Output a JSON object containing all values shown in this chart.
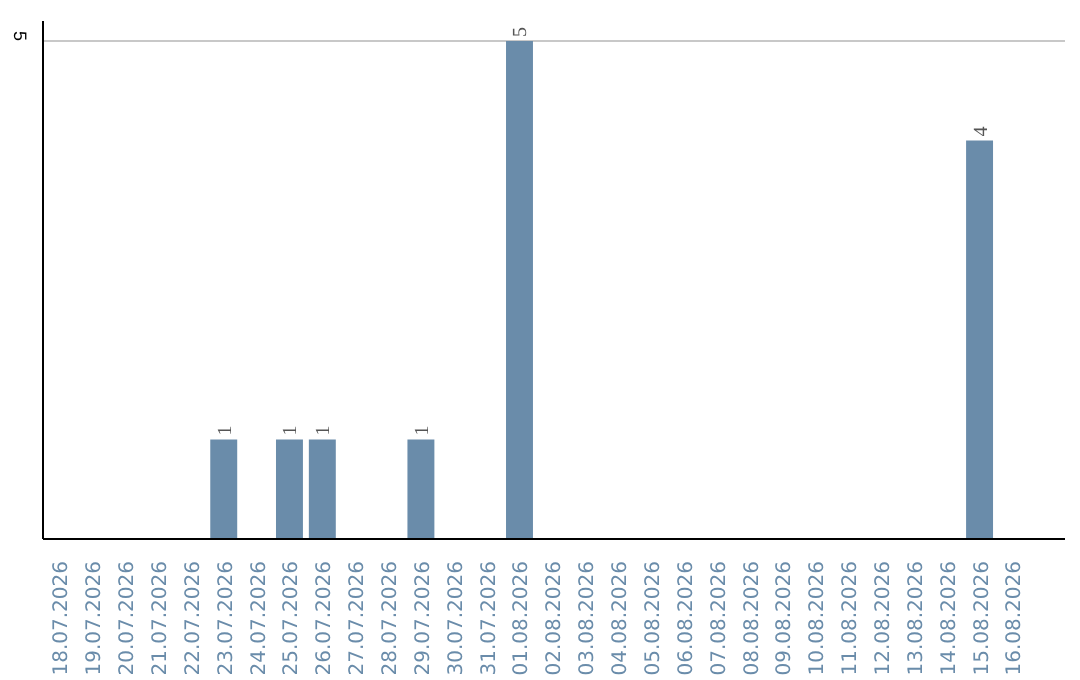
{
  "chart_data": {
    "type": "bar",
    "categories": [
      "18.07.2026",
      "19.07.2026",
      "20.07.2026",
      "21.07.2026",
      "22.07.2026",
      "23.07.2026",
      "24.07.2026",
      "25.07.2026",
      "26.07.2026",
      "27.07.2026",
      "28.07.2026",
      "29.07.2026",
      "30.07.2026",
      "31.07.2026",
      "01.08.2026",
      "02.08.2026",
      "03.08.2026",
      "04.08.2026",
      "05.08.2026",
      "06.08.2026",
      "07.08.2026",
      "08.08.2026",
      "09.08.2026",
      "10.08.2026",
      "11.08.2026",
      "12.08.2026",
      "13.08.2026",
      "14.08.2026",
      "15.08.2026",
      "16.08.2026"
    ],
    "values": [
      0,
      0,
      0,
      0,
      0,
      1,
      0,
      1,
      1,
      0,
      0,
      1,
      0,
      0,
      5,
      0,
      0,
      0,
      0,
      0,
      0,
      0,
      0,
      0,
      0,
      0,
      0,
      0,
      4,
      0
    ],
    "value_labels": [
      null,
      null,
      null,
      null,
      null,
      "1",
      null,
      "1",
      "1",
      null,
      null,
      "1",
      null,
      null,
      "5",
      null,
      null,
      null,
      null,
      null,
      null,
      null,
      null,
      null,
      null,
      null,
      null,
      null,
      "4",
      null
    ],
    "color": "#6a8caa",
    "ylim": [
      0,
      5.2
    ],
    "yticks": [
      5
    ],
    "grid": "y"
  }
}
